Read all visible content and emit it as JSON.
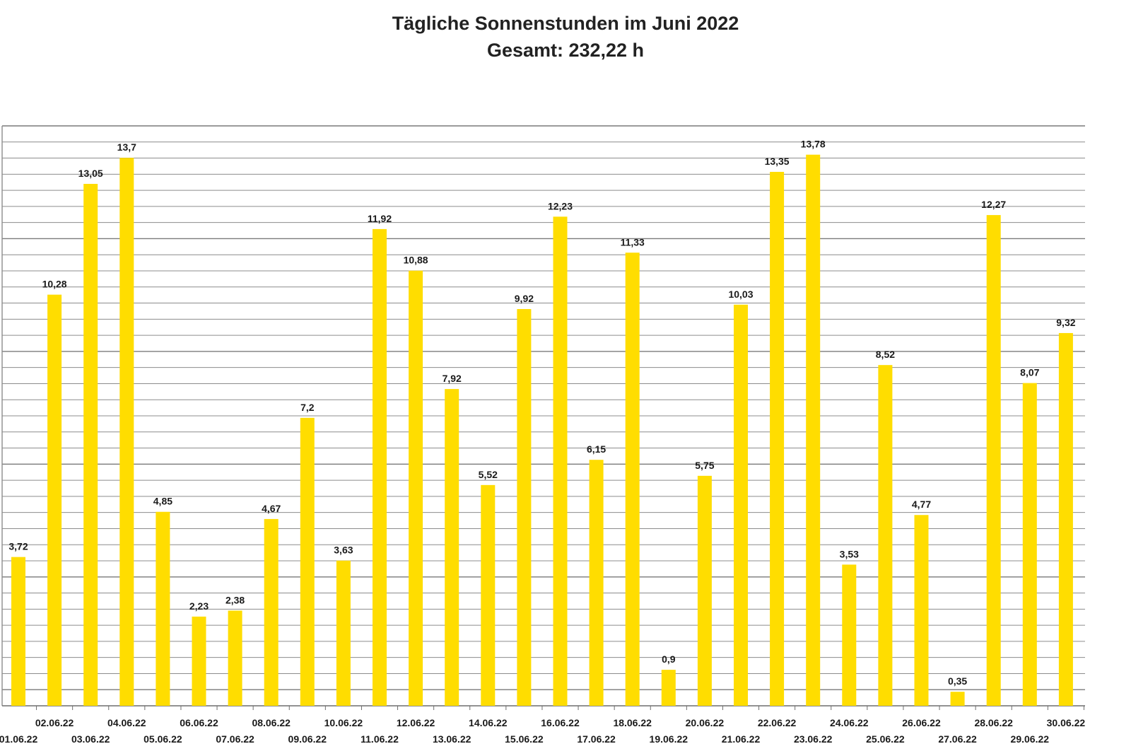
{
  "chart_data": {
    "type": "bar",
    "title": "Tägliche Sonnenstunden im Juni 2022",
    "subtitle": "Gesamt: 232,22 h",
    "xlabel": "",
    "ylabel": "",
    "ylim": [
      0,
      14.5
    ],
    "grid": true,
    "legend": "none",
    "categories": [
      "01.06.22",
      "02.06.22",
      "03.06.22",
      "04.06.22",
      "05.06.22",
      "06.06.22",
      "07.06.22",
      "08.06.22",
      "09.06.22",
      "10.06.22",
      "11.06.22",
      "12.06.22",
      "13.06.22",
      "14.06.22",
      "15.06.22",
      "16.06.22",
      "17.06.22",
      "18.06.22",
      "19.06.22",
      "20.06.22",
      "21.06.22",
      "22.06.22",
      "23.06.22",
      "24.06.22",
      "25.06.22",
      "26.06.22",
      "27.06.22",
      "28.06.22",
      "29.06.22",
      "30.06.22"
    ],
    "values": [
      3.72,
      10.28,
      13.05,
      13.7,
      4.85,
      2.23,
      2.38,
      4.67,
      7.2,
      3.63,
      11.92,
      10.88,
      7.92,
      5.52,
      9.92,
      12.23,
      6.15,
      11.33,
      0.9,
      5.75,
      10.03,
      13.35,
      13.78,
      3.53,
      8.52,
      4.77,
      0.35,
      12.27,
      8.07,
      9.32
    ],
    "value_labels": [
      "3,72",
      "10,28",
      "13,05",
      "13,7",
      "4,85",
      "2,23",
      "2,38",
      "4,67",
      "7,2",
      "3,63",
      "11,92",
      "10,88",
      "7,92",
      "5,52",
      "9,92",
      "12,23",
      "6,15",
      "11,33",
      "0,9",
      "5,75",
      "10,03",
      "13,35",
      "13,78",
      "3,53",
      "8,52",
      "4,77",
      "0,35",
      "12,27",
      "8,07",
      "9,32"
    ],
    "bar_color": "#ffdd00",
    "grid_color": "#8c8c8c"
  }
}
